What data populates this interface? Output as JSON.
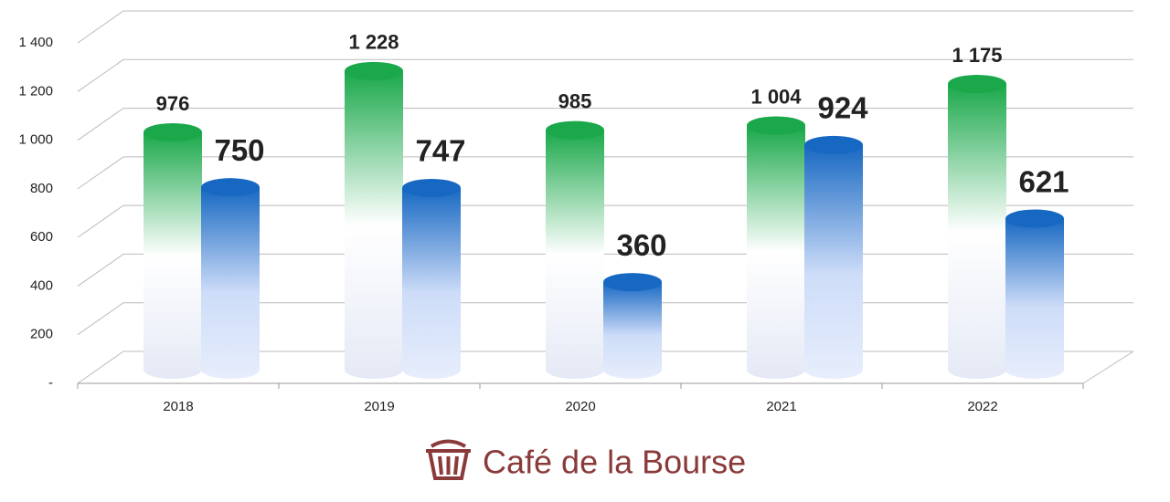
{
  "chart_data": {
    "type": "cylinder-bar",
    "categories": [
      "2018",
      "2019",
      "2020",
      "2021",
      "2022"
    ],
    "series": [
      {
        "color": "#1aa84a",
        "values": [
          976,
          1228,
          985,
          1004,
          1175
        ],
        "value_labels": [
          "976",
          "1 228",
          "985",
          "1 004",
          "1 175"
        ]
      },
      {
        "color": "#1768c2",
        "values": [
          750,
          747,
          360,
          924,
          621
        ]
      }
    ],
    "ylim": [
      0,
      1400
    ],
    "yticks": [
      {
        "value": 0,
        "label": "-"
      },
      200,
      400,
      600,
      800,
      {
        "value": 1000,
        "label": "1 000"
      },
      {
        "value": 1200,
        "label": "1 200"
      },
      {
        "value": 1400,
        "label": "1 400"
      }
    ],
    "grid": true,
    "watermark": "Café de la Bourse"
  }
}
